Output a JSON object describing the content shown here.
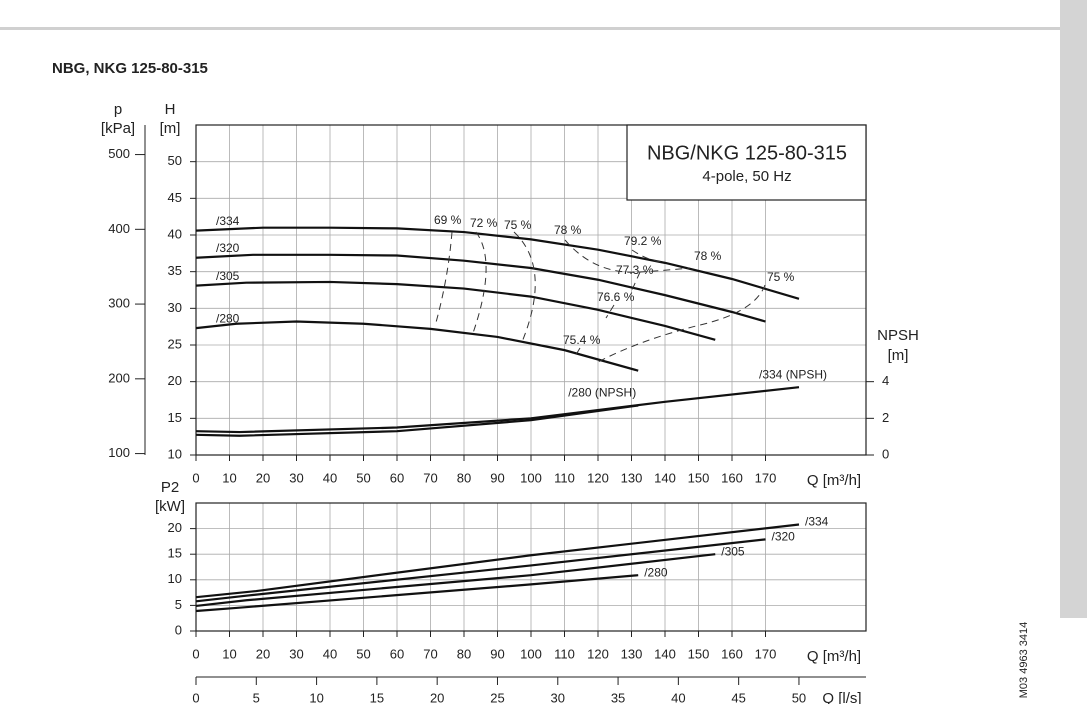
{
  "page_title": "NBG, NKG 125-80-315",
  "doc_id": "M03 4963 3414",
  "chart_data": [
    {
      "type": "line",
      "title": "NBG/NKG 125-80-315",
      "subtitle": "4-pole, 50 Hz",
      "x_label": "Q [m³/h]",
      "xlim": [
        0,
        200
      ],
      "xticks": [
        0,
        10,
        20,
        30,
        40,
        50,
        60,
        70,
        80,
        90,
        100,
        110,
        120,
        130,
        140,
        150,
        160,
        170
      ],
      "y_label": "H",
      "y_unit": "[m]",
      "ylim": [
        10,
        55
      ],
      "yticks": [
        10,
        15,
        20,
        25,
        30,
        35,
        40,
        45,
        50
      ],
      "p_label": "p",
      "p_unit": "[kPa]",
      "plim": [
        98.1,
        539.55
      ],
      "pticks": [
        100,
        200,
        300,
        400,
        500
      ],
      "y2_label": "NPSH",
      "y2_unit": "[m]",
      "y2lim": [
        0,
        18
      ],
      "y2ticks": [
        0,
        2,
        4
      ],
      "grid": true,
      "series": [
        {
          "name": "/334",
          "color": "#111111",
          "x": [
            0,
            20,
            40,
            60,
            80,
            100,
            120,
            140,
            160,
            180
          ],
          "values": [
            40.6,
            41.0,
            41.0,
            40.9,
            40.4,
            39.4,
            38.0,
            36.2,
            34.0,
            31.3
          ]
        },
        {
          "name": "/320",
          "color": "#111111",
          "x": [
            0,
            17,
            40,
            60,
            80,
            100,
            120,
            140,
            160,
            170
          ],
          "values": [
            36.9,
            37.3,
            37.3,
            37.2,
            36.5,
            35.5,
            33.9,
            31.8,
            29.5,
            28.2
          ]
        },
        {
          "name": "/305",
          "color": "#111111",
          "x": [
            0,
            15,
            40,
            60,
            80,
            100,
            120,
            140,
            155
          ],
          "values": [
            33.1,
            33.5,
            33.6,
            33.3,
            32.7,
            31.6,
            29.8,
            27.6,
            25.7
          ]
        },
        {
          "name": "/280",
          "color": "#111111",
          "x": [
            0,
            12,
            30,
            50,
            70,
            90,
            110,
            132
          ],
          "values": [
            27.3,
            27.9,
            28.2,
            27.9,
            27.2,
            26.1,
            24.3,
            21.5
          ]
        },
        {
          "name": "/334 (NPSH)",
          "color": "#111111",
          "axis": "y2",
          "x": [
            0,
            13,
            60,
            100,
            140,
            180
          ],
          "values": [
            1.3,
            1.25,
            1.5,
            2.0,
            2.9,
            3.7
          ]
        },
        {
          "name": "/280 (NPSH)",
          "color": "#111111",
          "axis": "y2",
          "x": [
            0,
            13,
            60,
            100,
            132
          ],
          "values": [
            1.1,
            1.05,
            1.3,
            1.9,
            2.7
          ]
        }
      ],
      "efficiency_labels": [
        "69 %",
        "72 %",
        "75 %",
        "78 %",
        "79.2 %",
        "78 %",
        "75 %",
        "77.3 %",
        "76.6 %",
        "75.4 %"
      ]
    },
    {
      "type": "line",
      "x_label": "Q [m³/h]",
      "xlim": [
        0,
        200
      ],
      "xticks": [
        0,
        10,
        20,
        30,
        40,
        50,
        60,
        70,
        80,
        90,
        100,
        110,
        120,
        130,
        140,
        150,
        160,
        170
      ],
      "y_label": "P2",
      "y_unit": "[kW]",
      "ylim": [
        0,
        25
      ],
      "yticks": [
        0,
        5,
        10,
        15,
        20
      ],
      "grid": true,
      "x2_label": "Q [l/s]",
      "x2lim": [
        0,
        55.56
      ],
      "x2ticks": [
        0,
        5,
        10,
        15,
        20,
        25,
        30,
        35,
        40,
        45,
        50
      ],
      "series": [
        {
          "name": "/334",
          "color": "#111111",
          "x": [
            0,
            18,
            100,
            180
          ],
          "values": [
            6.6,
            7.8,
            14.8,
            20.8
          ]
        },
        {
          "name": "/320",
          "color": "#111111",
          "x": [
            0,
            15,
            100,
            170
          ],
          "values": [
            5.8,
            6.9,
            12.8,
            17.9
          ]
        },
        {
          "name": "/305",
          "color": "#111111",
          "x": [
            0,
            15,
            100,
            155
          ],
          "values": [
            4.9,
            6.0,
            10.9,
            15.0
          ]
        },
        {
          "name": "/280",
          "color": "#111111",
          "x": [
            0,
            12,
            100,
            132
          ],
          "values": [
            3.9,
            4.5,
            9.1,
            10.9
          ]
        }
      ]
    }
  ]
}
